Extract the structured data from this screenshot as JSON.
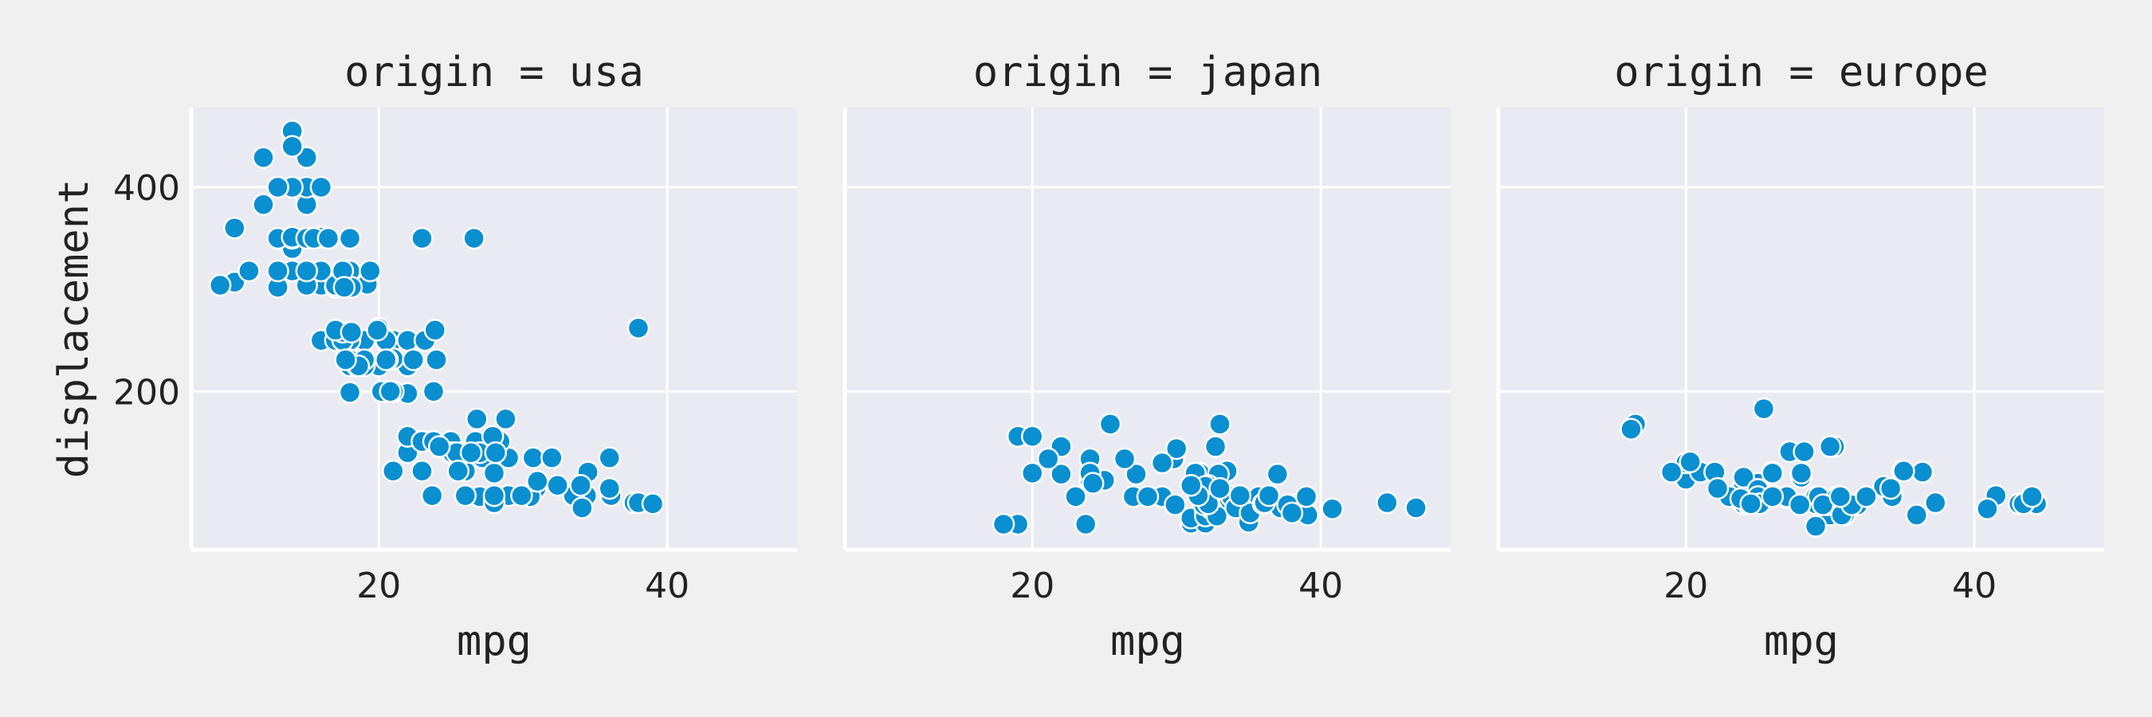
{
  "chart_data": [
    {
      "type": "scatter",
      "title": "origin = usa",
      "xlabel": "mpg",
      "ylabel": "displacement",
      "xlim": [
        7,
        49
      ],
      "ylim": [
        45,
        478
      ],
      "xticks": [
        20,
        40
      ],
      "yticks": [
        200,
        400
      ],
      "grid": true,
      "color": "#0a8fd1",
      "points": [
        [
          18,
          307
        ],
        [
          15,
          350
        ],
        [
          18,
          318
        ],
        [
          16,
          304
        ],
        [
          17,
          302
        ],
        [
          15,
          429
        ],
        [
          14,
          454
        ],
        [
          14,
          440
        ],
        [
          14,
          455
        ],
        [
          15,
          390
        ],
        [
          15,
          383
        ],
        [
          14,
          340
        ],
        [
          15,
          400
        ],
        [
          14,
          455
        ],
        [
          22,
          198
        ],
        [
          18,
          199
        ],
        [
          21,
          200
        ],
        [
          27,
          97
        ],
        [
          10,
          360
        ],
        [
          10,
          307
        ],
        [
          11,
          318
        ],
        [
          9,
          304
        ],
        [
          19,
          232
        ],
        [
          16,
          250
        ],
        [
          17,
          250
        ],
        [
          19,
          250
        ],
        [
          18,
          232
        ],
        [
          14,
          350
        ],
        [
          14,
          400
        ],
        [
          14,
          351
        ],
        [
          14,
          318
        ],
        [
          12,
          383
        ],
        [
          13,
          400
        ],
        [
          13,
          400
        ],
        [
          18,
          258
        ],
        [
          22,
          140
        ],
        [
          19,
          250
        ],
        [
          18,
          250
        ],
        [
          23,
          122
        ],
        [
          28,
          97
        ],
        [
          25,
          140
        ],
        [
          13,
          400
        ],
        [
          14,
          351
        ],
        [
          13,
          302
        ],
        [
          14,
          318
        ],
        [
          15,
          304
        ],
        [
          12,
          429
        ],
        [
          13,
          350
        ],
        [
          13,
          350
        ],
        [
          13,
          400
        ],
        [
          16,
          318
        ],
        [
          18,
          350
        ],
        [
          14,
          351
        ],
        [
          22,
          225
        ],
        [
          19,
          250
        ],
        [
          18,
          232
        ],
        [
          22,
          140
        ],
        [
          21,
          250
        ],
        [
          26,
          122
        ],
        [
          22,
          156
        ],
        [
          15,
          350
        ],
        [
          16,
          400
        ],
        [
          18,
          258
        ],
        [
          21,
          232
        ],
        [
          20,
          225
        ],
        [
          26,
          140
        ],
        [
          29,
          98
        ],
        [
          16,
          318
        ],
        [
          16,
          351
        ],
        [
          14,
          318
        ],
        [
          14,
          440
        ],
        [
          13,
          318
        ],
        [
          19,
          225
        ],
        [
          18,
          225
        ],
        [
          20,
          262
        ],
        [
          22,
          250
        ],
        [
          18,
          258
        ],
        [
          17,
          302
        ],
        [
          21,
          200
        ],
        [
          23,
          151
        ],
        [
          26,
          98
        ],
        [
          29,
          135
        ],
        [
          24,
          231
        ],
        [
          18,
          250
        ],
        [
          15,
          318
        ],
        [
          17,
          304
        ],
        [
          18,
          231
        ],
        [
          23,
          151
        ],
        [
          25,
          151
        ],
        [
          28,
          91
        ],
        [
          17.5,
          250
        ],
        [
          15.5,
          350
        ],
        [
          17.5,
          258
        ],
        [
          20.5,
          250
        ],
        [
          19,
          231
        ],
        [
          18.5,
          225
        ],
        [
          29,
          135
        ],
        [
          20.5,
          200
        ],
        [
          17,
          260
        ],
        [
          36.1,
          98
        ],
        [
          20.2,
          200
        ],
        [
          25.1,
          140
        ],
        [
          20.6,
          231
        ],
        [
          20.8,
          200
        ],
        [
          18.6,
          225
        ],
        [
          18.1,
          258
        ],
        [
          19.2,
          305
        ],
        [
          17.7,
          231
        ],
        [
          18.1,
          302
        ],
        [
          17.5,
          318
        ],
        [
          30,
          98
        ],
        [
          30.9,
          105
        ],
        [
          23.2,
          250
        ],
        [
          23.8,
          151
        ],
        [
          27.2,
          135
        ],
        [
          23.9,
          260
        ],
        [
          28.4,
          151
        ],
        [
          28.8,
          173
        ],
        [
          26.8,
          173
        ],
        [
          26.7,
          151
        ],
        [
          30.7,
          135
        ],
        [
          23.7,
          98
        ],
        [
          34.4,
          98
        ],
        [
          34.5,
          121
        ],
        [
          33.5,
          98
        ],
        [
          30.5,
          97
        ],
        [
          32.4,
          108
        ],
        [
          34.1,
          86
        ],
        [
          37.7,
          91
        ],
        [
          28,
          98
        ],
        [
          29.9,
          98
        ],
        [
          27.9,
          156
        ],
        [
          31,
          112
        ],
        [
          38,
          262
        ],
        [
          36,
          135
        ],
        [
          36,
          105
        ],
        [
          34,
          108
        ],
        [
          38,
          91
        ],
        [
          32,
          135
        ],
        [
          28,
          120
        ],
        [
          27,
          140
        ],
        [
          39,
          90
        ],
        [
          26.6,
          350
        ],
        [
          23,
          350
        ],
        [
          28.1,
          140
        ],
        [
          19.4,
          318
        ],
        [
          19.9,
          260
        ],
        [
          20.5,
          231
        ],
        [
          25.4,
          140
        ],
        [
          24.2,
          146
        ],
        [
          22.4,
          231
        ],
        [
          26.4,
          140
        ],
        [
          25.5,
          122
        ],
        [
          21,
          122
        ],
        [
          16.5,
          350
        ],
        [
          17.6,
          302
        ],
        [
          23.8,
          200
        ]
      ]
    },
    {
      "type": "scatter",
      "title": "origin = japan",
      "xlabel": "mpg",
      "ylabel": "",
      "xlim": [
        7,
        49
      ],
      "ylim": [
        45,
        478
      ],
      "xticks": [
        20,
        40
      ],
      "yticks": [
        200,
        400
      ],
      "grid": true,
      "color": "#0a8fd1",
      "points": [
        [
          24,
          113
        ],
        [
          27,
          97
        ],
        [
          27,
          97
        ],
        [
          25,
          113
        ],
        [
          31,
          71
        ],
        [
          35,
          72
        ],
        [
          24,
          113
        ],
        [
          19,
          70
        ],
        [
          28,
          97
        ],
        [
          23,
          97
        ],
        [
          32,
          71
        ],
        [
          24,
          119
        ],
        [
          18,
          70
        ],
        [
          31,
          76
        ],
        [
          32,
          83
        ],
        [
          29,
          97
        ],
        [
          24,
          134
        ],
        [
          20,
          120
        ],
        [
          22,
          119
        ],
        [
          33,
          91
        ],
        [
          32,
          78
        ],
        [
          28,
          97
        ],
        [
          32.4,
          85
        ],
        [
          31.8,
          91
        ],
        [
          29.9,
          89
        ],
        [
          33.5,
          122
        ],
        [
          34.1,
          91
        ],
        [
          35.7,
          97
        ],
        [
          44.6,
          91
        ],
        [
          40.8,
          85
        ],
        [
          32.8,
          78
        ],
        [
          32.7,
          146
        ],
        [
          31.6,
          120
        ],
        [
          38.1,
          89
        ],
        [
          32.3,
          97
        ],
        [
          32.9,
          119
        ],
        [
          31.3,
          120
        ],
        [
          37,
          119
        ],
        [
          32.2,
          108
        ],
        [
          46.6,
          86
        ],
        [
          33.8,
          97
        ],
        [
          37.2,
          86
        ],
        [
          31.9,
          89
        ],
        [
          39.1,
          79
        ],
        [
          36.1,
          91
        ],
        [
          34.1,
          86
        ],
        [
          32,
          107
        ],
        [
          25.4,
          168
        ],
        [
          22,
          146
        ],
        [
          27.2,
          119
        ],
        [
          24,
          120
        ],
        [
          32.2,
          90
        ],
        [
          23.7,
          70
        ],
        [
          29.8,
          134
        ],
        [
          31.5,
          98
        ],
        [
          35.1,
          81
        ],
        [
          36,
          90
        ],
        [
          36.1,
          91
        ],
        [
          19,
          156
        ],
        [
          20,
          156
        ],
        [
          21.1,
          134
        ],
        [
          24.2,
          110
        ],
        [
          30,
          144
        ],
        [
          33,
          168
        ],
        [
          34.4,
          98
        ],
        [
          36.4,
          98
        ],
        [
          26.4,
          134
        ],
        [
          37.7,
          89
        ],
        [
          38,
          81
        ],
        [
          39,
          97
        ],
        [
          33,
          105
        ],
        [
          29,
          130
        ],
        [
          31,
          108
        ]
      ]
    },
    {
      "type": "scatter",
      "title": "origin = europe",
      "xlabel": "mpg",
      "ylabel": "",
      "xlim": [
        7,
        49
      ],
      "ylim": [
        45,
        478
      ],
      "xticks": [
        20,
        40
      ],
      "yticks": [
        200,
        400
      ],
      "grid": true,
      "color": "#0a8fd1",
      "points": [
        [
          26,
          97
        ],
        [
          25,
          110
        ],
        [
          24,
          107
        ],
        [
          25,
          104
        ],
        [
          26,
          121
        ],
        [
          30,
          79
        ],
        [
          27,
          96
        ],
        [
          25,
          97
        ],
        [
          29,
          68
        ],
        [
          24,
          116
        ],
        [
          26,
          121
        ],
        [
          28,
          116
        ],
        [
          23,
          97
        ],
        [
          20,
          114
        ],
        [
          26,
          97
        ],
        [
          21,
          121
        ],
        [
          19,
          121
        ],
        [
          26,
          120
        ],
        [
          31,
          79
        ],
        [
          24,
          90
        ],
        [
          29,
          97
        ],
        [
          22,
          121
        ],
        [
          29,
          90
        ],
        [
          26,
          98
        ],
        [
          20,
          130
        ],
        [
          25,
          104
        ],
        [
          19,
          121
        ],
        [
          22,
          121
        ],
        [
          27,
          97
        ],
        [
          16.5,
          168
        ],
        [
          16.2,
          163
        ],
        [
          31.9,
          89
        ],
        [
          29.2,
          97
        ],
        [
          25.4,
          183
        ],
        [
          30.3,
          146
        ],
        [
          24.3,
          90
        ],
        [
          41.5,
          98
        ],
        [
          43.1,
          90
        ],
        [
          44.3,
          90
        ],
        [
          43.4,
          90
        ],
        [
          34.3,
          97
        ],
        [
          37.3,
          91
        ],
        [
          29.8,
          89
        ],
        [
          27.2,
          141
        ],
        [
          30.5,
          97
        ],
        [
          44,
          97
        ],
        [
          33.7,
          107
        ],
        [
          36.4,
          121
        ],
        [
          30,
          146
        ],
        [
          28.2,
          141
        ],
        [
          23,
          97
        ],
        [
          25,
          97
        ],
        [
          36,
          79
        ],
        [
          25.1,
          90
        ],
        [
          35,
          122
        ],
        [
          30.8,
          79
        ],
        [
          22.2,
          105
        ],
        [
          29.5,
          89
        ],
        [
          23.8,
          95
        ],
        [
          31.5,
          89
        ],
        [
          32.5,
          97
        ],
        [
          24.5,
          90
        ],
        [
          34.2,
          105
        ],
        [
          40.9,
          85
        ],
        [
          28,
          120
        ],
        [
          35.1,
          122
        ],
        [
          20.3,
          131
        ],
        [
          26,
          97
        ],
        [
          27.9,
          89
        ],
        [
          30.7,
          97
        ]
      ]
    }
  ]
}
